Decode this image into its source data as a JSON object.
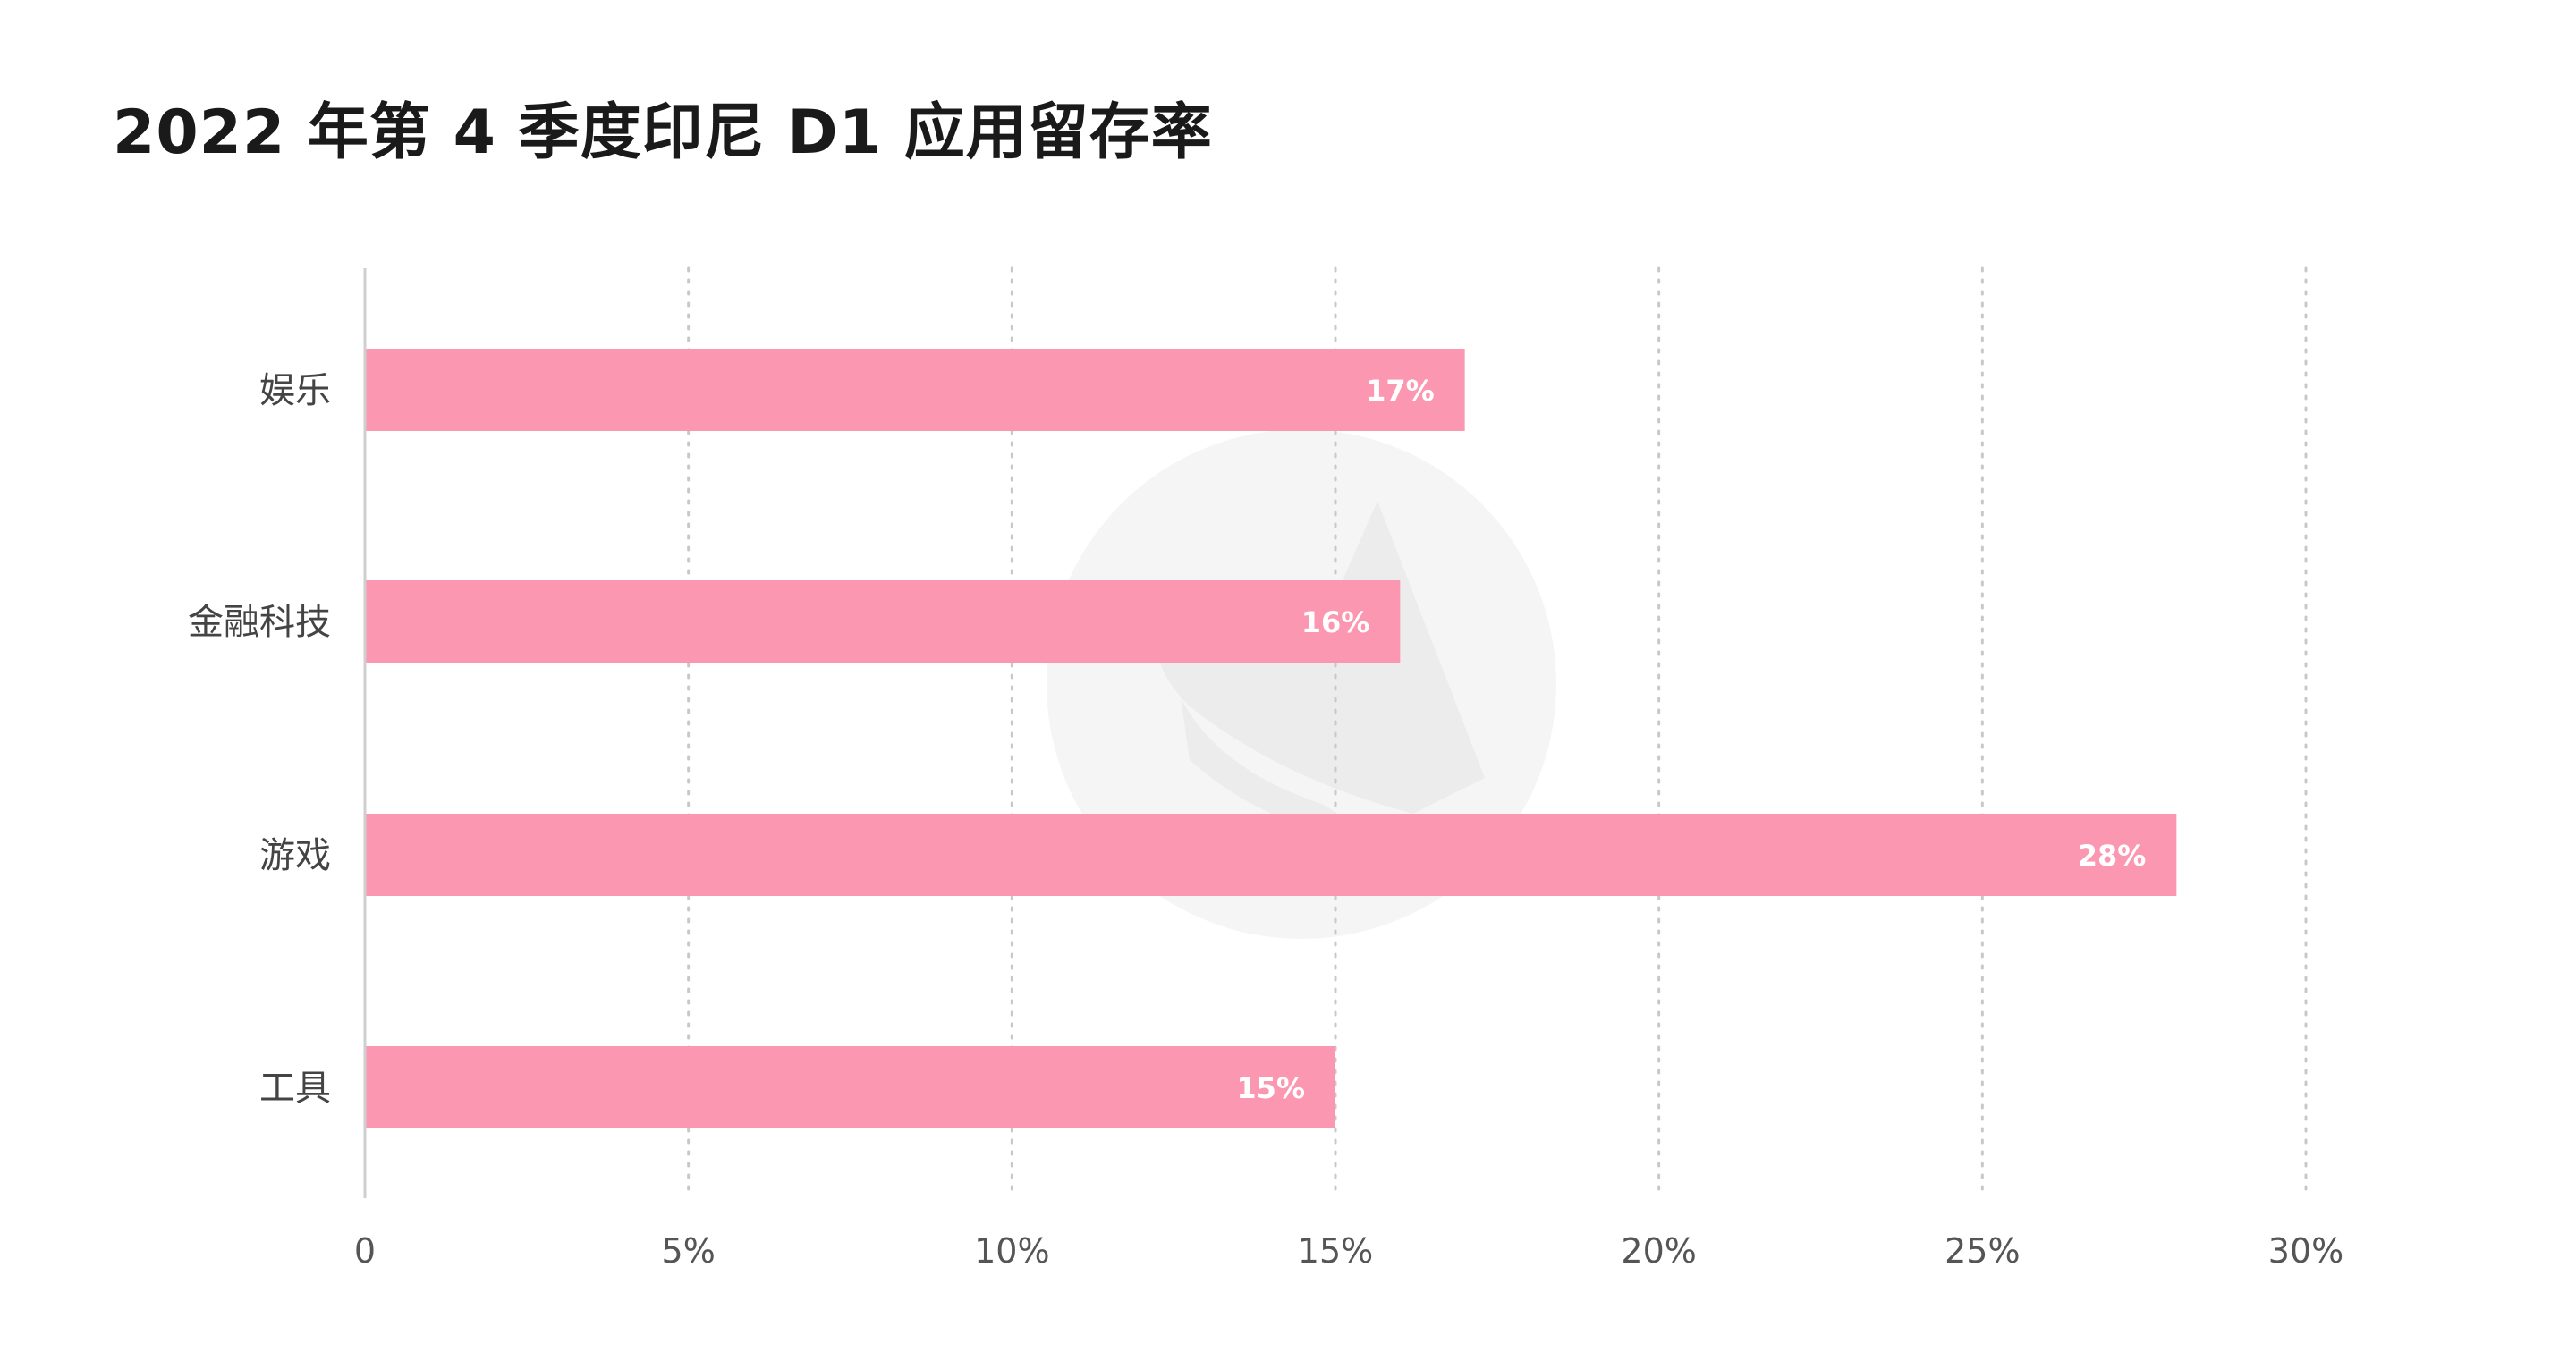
{
  "chart_data": {
    "type": "bar",
    "orientation": "horizontal",
    "title": "2022 年第 4 季度印尼 D1 应用留存率",
    "categories": [
      "娱乐",
      "金融科技",
      "游戏",
      "工具"
    ],
    "values": [
      17,
      16,
      28,
      15
    ],
    "data_labels": [
      "17%",
      "16%",
      "28%",
      "15%"
    ],
    "xlim": [
      0,
      30
    ],
    "x_ticks": [
      0,
      5,
      10,
      15,
      20,
      25,
      30
    ],
    "x_tick_labels": [
      "0",
      "5%",
      "10%",
      "15%",
      "20%",
      "25%",
      "30%"
    ],
    "grid": true,
    "legend": "none",
    "bar_color": "#fb97b1",
    "grid_color": "#c8c8c8",
    "axis_color": "#cfcfcf",
    "watermark_color": "#f5f5f5"
  }
}
